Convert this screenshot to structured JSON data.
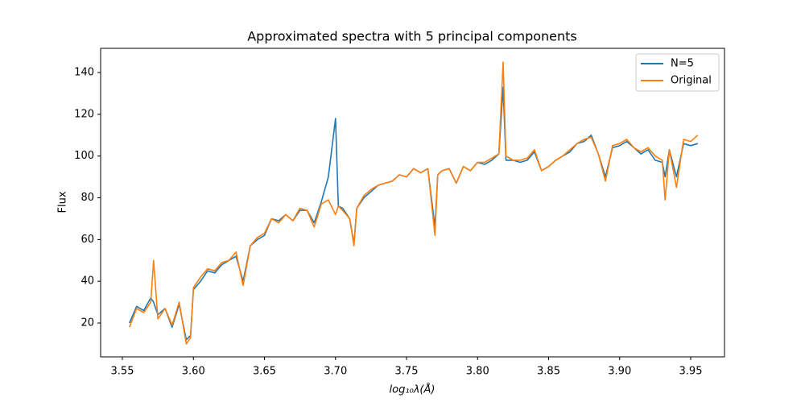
{
  "chart_data": {
    "type": "line",
    "title": "Approximated spectra with 5 principal components",
    "xlabel": "log₁₀λ(Å)",
    "ylabel": "Flux",
    "x": [
      3.555,
      3.56,
      3.565,
      3.57,
      3.572,
      3.575,
      3.58,
      3.585,
      3.59,
      3.595,
      3.598,
      3.6,
      3.605,
      3.61,
      3.615,
      3.62,
      3.625,
      3.63,
      3.635,
      3.64,
      3.645,
      3.65,
      3.655,
      3.66,
      3.665,
      3.67,
      3.675,
      3.68,
      3.685,
      3.69,
      3.695,
      3.7,
      3.702,
      3.705,
      3.71,
      3.713,
      3.715,
      3.72,
      3.725,
      3.73,
      3.735,
      3.74,
      3.745,
      3.75,
      3.755,
      3.76,
      3.765,
      3.77,
      3.772,
      3.775,
      3.78,
      3.785,
      3.79,
      3.795,
      3.8,
      3.805,
      3.81,
      3.815,
      3.818,
      3.82,
      3.825,
      3.83,
      3.835,
      3.84,
      3.845,
      3.85,
      3.855,
      3.86,
      3.865,
      3.87,
      3.875,
      3.88,
      3.885,
      3.89,
      3.895,
      3.9,
      3.905,
      3.91,
      3.915,
      3.92,
      3.925,
      3.93,
      3.932,
      3.935,
      3.94,
      3.945,
      3.95,
      3.955
    ],
    "series": [
      {
        "name": "N=5",
        "color": "#1f77b4",
        "values": [
          20,
          28,
          26,
          32,
          30,
          24,
          27,
          18,
          29,
          12,
          14,
          36,
          40,
          45,
          44,
          48,
          50,
          52,
          40,
          57,
          60,
          62,
          70,
          69,
          72,
          69,
          74,
          74,
          68,
          78,
          90,
          118,
          76,
          75,
          70,
          58,
          75,
          80,
          83,
          86,
          87,
          88,
          91,
          90,
          94,
          92,
          94,
          66,
          91,
          93,
          94,
          87,
          95,
          93,
          97,
          96,
          98,
          101,
          133,
          98,
          98,
          97,
          98,
          102,
          93,
          95,
          98,
          100,
          102,
          106,
          107,
          110,
          101,
          90,
          104,
          105,
          107,
          104,
          101,
          103,
          98,
          97,
          90,
          103,
          90,
          106,
          105,
          106
        ]
      },
      {
        "name": "Original",
        "color": "#ff7f0e",
        "values": [
          18,
          27,
          25,
          30,
          50,
          22,
          27,
          19,
          30,
          10,
          13,
          37,
          42,
          46,
          45,
          49,
          50,
          54,
          38,
          57,
          61,
          63,
          70,
          68,
          72,
          69,
          75,
          74,
          66,
          77,
          79,
          72,
          76,
          74,
          70,
          57,
          75,
          81,
          84,
          86,
          87,
          88,
          91,
          90,
          94,
          92,
          94,
          62,
          91,
          93,
          94,
          87,
          95,
          93,
          97,
          97,
          99,
          101,
          145,
          100,
          98,
          98,
          99,
          103,
          93,
          95,
          98,
          100,
          103,
          106,
          108,
          109,
          101,
          88,
          105,
          106,
          108,
          104,
          102,
          104,
          100,
          98,
          79,
          103,
          85,
          108,
          107,
          110
        ]
      }
    ],
    "xlim": [
      3.5347,
      3.9738
    ],
    "ylim": [
      3.8,
      151.6
    ],
    "xticks": [
      3.55,
      {
        "value": 3.6,
        "label": "3.60"
      },
      3.65,
      {
        "value": 3.7,
        "label": "3.70"
      },
      3.75,
      {
        "value": 3.8,
        "label": "3.80"
      },
      3.85,
      {
        "value": 3.9,
        "label": "3.90"
      },
      3.95
    ],
    "yticks": [
      20,
      40,
      60,
      80,
      100,
      120,
      140
    ],
    "legend": "upper right"
  }
}
